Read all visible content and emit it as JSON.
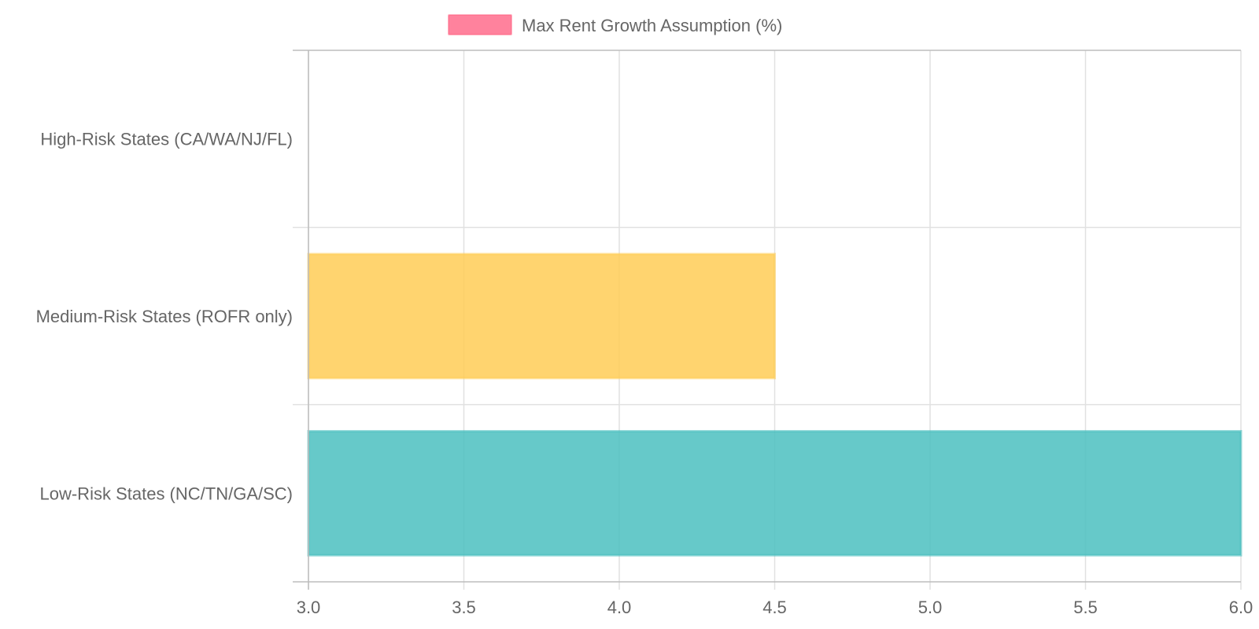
{
  "chart_data": {
    "type": "bar",
    "orientation": "horizontal",
    "categories": [
      "High-Risk States (CA/WA/NJ/FL)",
      "Medium-Risk States (ROFR only)",
      "Low-Risk States (NC/TN/GA/SC)"
    ],
    "series": [
      {
        "name": "Max Rent Growth Assumption (%)",
        "values": [
          3.0,
          4.5,
          6.0
        ],
        "colors": [
          "#ff6384",
          "#ffcd56",
          "#4bc0c0"
        ],
        "legend_color": "#ff6384"
      }
    ],
    "x_ticks": [
      "3.0",
      "3.5",
      "4.0",
      "4.5",
      "5.0",
      "5.5",
      "6.0"
    ],
    "xlim": [
      3.0,
      6.0
    ],
    "grid": true,
    "legend_position": "top"
  }
}
